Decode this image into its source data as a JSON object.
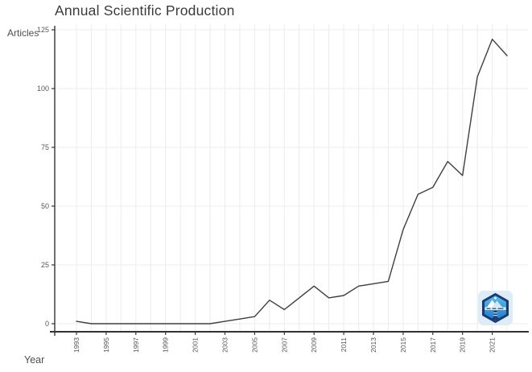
{
  "title": "Annual Scientific Production",
  "axis": {
    "ylabel": "Articles",
    "xlabel": "Year"
  },
  "colors": {
    "line": "#3f3f3f",
    "grid": "#ececec",
    "axis": "#333333",
    "tick_text": "#555555",
    "title_text": "#3b3b3b",
    "logo_navy": "#1d3a70",
    "logo_blue_light": "#5ec1ed",
    "logo_blue_dark": "#1976c8",
    "logo_bg": "#dcecf8"
  },
  "watermark": {
    "icon": "bibliometrix-hexagon-logo"
  },
  "chart_data": {
    "type": "line",
    "title": "Annual Scientific Production",
    "xlabel": "Year",
    "ylabel": "Articles",
    "x": [
      1993,
      1994,
      1995,
      1996,
      1997,
      1998,
      1999,
      2000,
      2001,
      2002,
      2003,
      2004,
      2005,
      2006,
      2007,
      2008,
      2009,
      2010,
      2011,
      2012,
      2013,
      2014,
      2015,
      2016,
      2017,
      2018,
      2019,
      2020,
      2021,
      2022
    ],
    "values": [
      1,
      0,
      0,
      0,
      0,
      0,
      0,
      0,
      0,
      0,
      1,
      2,
      3,
      10,
      6,
      11,
      16,
      11,
      12,
      16,
      17,
      18,
      40,
      55,
      58,
      69,
      63,
      105,
      121,
      114
    ],
    "ylim": [
      0,
      125
    ],
    "yticks": [
      0,
      25,
      50,
      75,
      100,
      125
    ],
    "xtick_labels": [
      1993,
      1995,
      1997,
      1999,
      2001,
      2003,
      2005,
      2007,
      2009,
      2011,
      2013,
      2015,
      2017,
      2019,
      2021
    ],
    "grid": true,
    "legend": false
  }
}
